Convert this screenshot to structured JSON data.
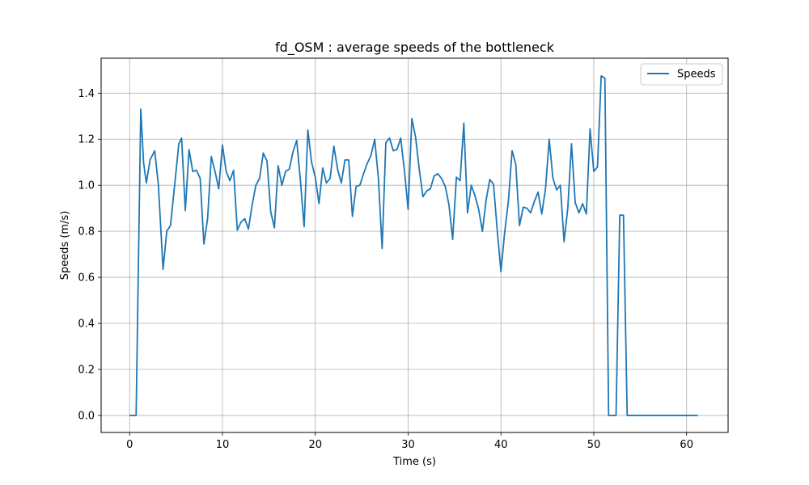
{
  "chart_data": {
    "type": "line",
    "title": "fd_OSM : average speeds of the bottleneck",
    "xlabel": "Time (s)",
    "ylabel": "Speeds (m/s)",
    "xlim": [
      -3.07,
      64.47
    ],
    "ylim": [
      -0.074,
      1.552
    ],
    "xticks": [
      0,
      10,
      20,
      30,
      40,
      50,
      60
    ],
    "xtick_labels": [
      "0",
      "10",
      "20",
      "30",
      "40",
      "50",
      "60"
    ],
    "yticks": [
      0.0,
      0.2,
      0.4,
      0.6,
      0.8,
      1.0,
      1.2,
      1.4
    ],
    "ytick_labels": [
      "0.0",
      "0.2",
      "0.4",
      "0.6",
      "0.8",
      "1.0",
      "1.2",
      "1.4"
    ],
    "grid": true,
    "legend_position": "top-right",
    "line_color": "#1f77b4",
    "series": [
      {
        "name": "Speeds",
        "x": [
          0.0,
          0.7,
          1.2,
          1.5,
          1.8,
          2.2,
          2.7,
          3.1,
          3.6,
          4.0,
          4.4,
          4.9,
          5.3,
          5.6,
          6.0,
          6.4,
          6.8,
          7.2,
          7.6,
          8.0,
          8.4,
          8.8,
          9.2,
          9.6,
          10.0,
          10.4,
          10.8,
          11.2,
          11.6,
          12.0,
          12.4,
          12.8,
          13.2,
          13.6,
          14.0,
          14.4,
          14.8,
          15.2,
          15.6,
          16.0,
          16.4,
          16.8,
          17.2,
          17.6,
          18.0,
          18.4,
          18.8,
          19.2,
          19.6,
          20.0,
          20.4,
          20.8,
          21.2,
          21.6,
          22.0,
          22.4,
          22.8,
          23.2,
          23.6,
          24.0,
          24.4,
          24.8,
          25.2,
          25.6,
          26.0,
          26.4,
          26.8,
          27.2,
          27.6,
          28.0,
          28.4,
          28.8,
          29.2,
          29.6,
          30.0,
          30.4,
          30.8,
          31.2,
          31.6,
          32.0,
          32.4,
          32.8,
          33.2,
          33.6,
          34.0,
          34.4,
          34.8,
          35.2,
          35.6,
          36.0,
          36.4,
          36.8,
          37.2,
          37.6,
          38.0,
          38.4,
          38.8,
          39.2,
          39.6,
          40.0,
          40.4,
          40.8,
          41.2,
          41.6,
          42.0,
          42.4,
          42.8,
          43.2,
          43.6,
          44.0,
          44.4,
          44.8,
          45.2,
          45.6,
          46.0,
          46.4,
          46.8,
          47.2,
          47.6,
          48.0,
          48.4,
          48.8,
          49.2,
          49.6,
          50.0,
          50.4,
          50.8,
          51.2,
          51.6,
          52.0,
          52.4,
          52.8,
          53.2,
          53.6,
          61.2
        ],
        "values": [
          0.0,
          0.0,
          1.33,
          1.1,
          1.01,
          1.11,
          1.15,
          1.0,
          0.635,
          0.8,
          0.825,
          1.02,
          1.18,
          1.205,
          0.89,
          1.155,
          1.06,
          1.065,
          1.03,
          0.745,
          0.855,
          1.125,
          1.06,
          0.985,
          1.175,
          1.06,
          1.02,
          1.065,
          0.805,
          0.84,
          0.855,
          0.81,
          0.915,
          1.0,
          1.03,
          1.14,
          1.105,
          0.885,
          0.815,
          1.085,
          1.0,
          1.06,
          1.07,
          1.145,
          1.195,
          1.02,
          0.82,
          1.24,
          1.1,
          1.035,
          0.92,
          1.075,
          1.01,
          1.03,
          1.17,
          1.07,
          1.01,
          1.11,
          1.11,
          0.865,
          0.995,
          1.0,
          1.05,
          1.095,
          1.13,
          1.2,
          1.03,
          0.725,
          1.185,
          1.205,
          1.15,
          1.155,
          1.205,
          1.065,
          0.895,
          1.29,
          1.21,
          1.07,
          0.95,
          0.975,
          0.985,
          1.04,
          1.05,
          1.03,
          0.995,
          0.915,
          0.765,
          1.035,
          1.02,
          1.27,
          0.88,
          1.0,
          0.955,
          0.895,
          0.8,
          0.935,
          1.025,
          1.005,
          0.805,
          0.625,
          0.795,
          0.93,
          1.15,
          1.09,
          0.825,
          0.905,
          0.9,
          0.88,
          0.93,
          0.97,
          0.875,
          0.985,
          1.2,
          1.03,
          0.98,
          1.0,
          0.755,
          0.9,
          1.18,
          0.925,
          0.88,
          0.92,
          0.875,
          1.245,
          1.06,
          1.08,
          1.475,
          1.465,
          0.0,
          0.0,
          0.0,
          0.87,
          0.87,
          0.0,
          0.0
        ]
      }
    ]
  }
}
